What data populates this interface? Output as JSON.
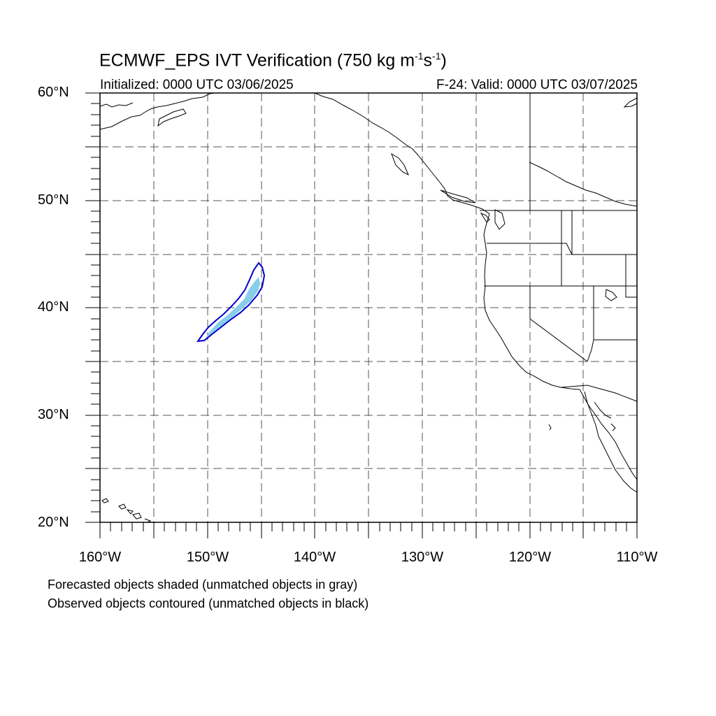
{
  "title": {
    "main": "ECMWF_EPS IVT Verification (750 kg m",
    "sup1": "-1",
    "mid": "s",
    "sup2": "-1",
    "end": ")"
  },
  "subtitle": {
    "left": "Initialized: 0000 UTC 03/06/2025",
    "right": "F-24: Valid: 0000 UTC 03/07/2025"
  },
  "axes": {
    "lat_labels": [
      "60°N",
      "50°N",
      "40°N",
      "30°N",
      "20°N"
    ],
    "lon_labels": [
      "160°W",
      "150°W",
      "140°W",
      "130°W",
      "120°W",
      "110°W"
    ],
    "lat_range": [
      20,
      60
    ],
    "lon_range": [
      -160,
      -110
    ],
    "grid": "dashed, every 5 degrees"
  },
  "colors": {
    "forecast_fill": "#87ceeb",
    "observed_contour": "#0000cd",
    "coastline": "#000000"
  },
  "notes": {
    "line1": "Forecasted objects shaded (unmatched objects in gray)",
    "line2": "Observed objects contoured (unmatched objects in black)"
  }
}
